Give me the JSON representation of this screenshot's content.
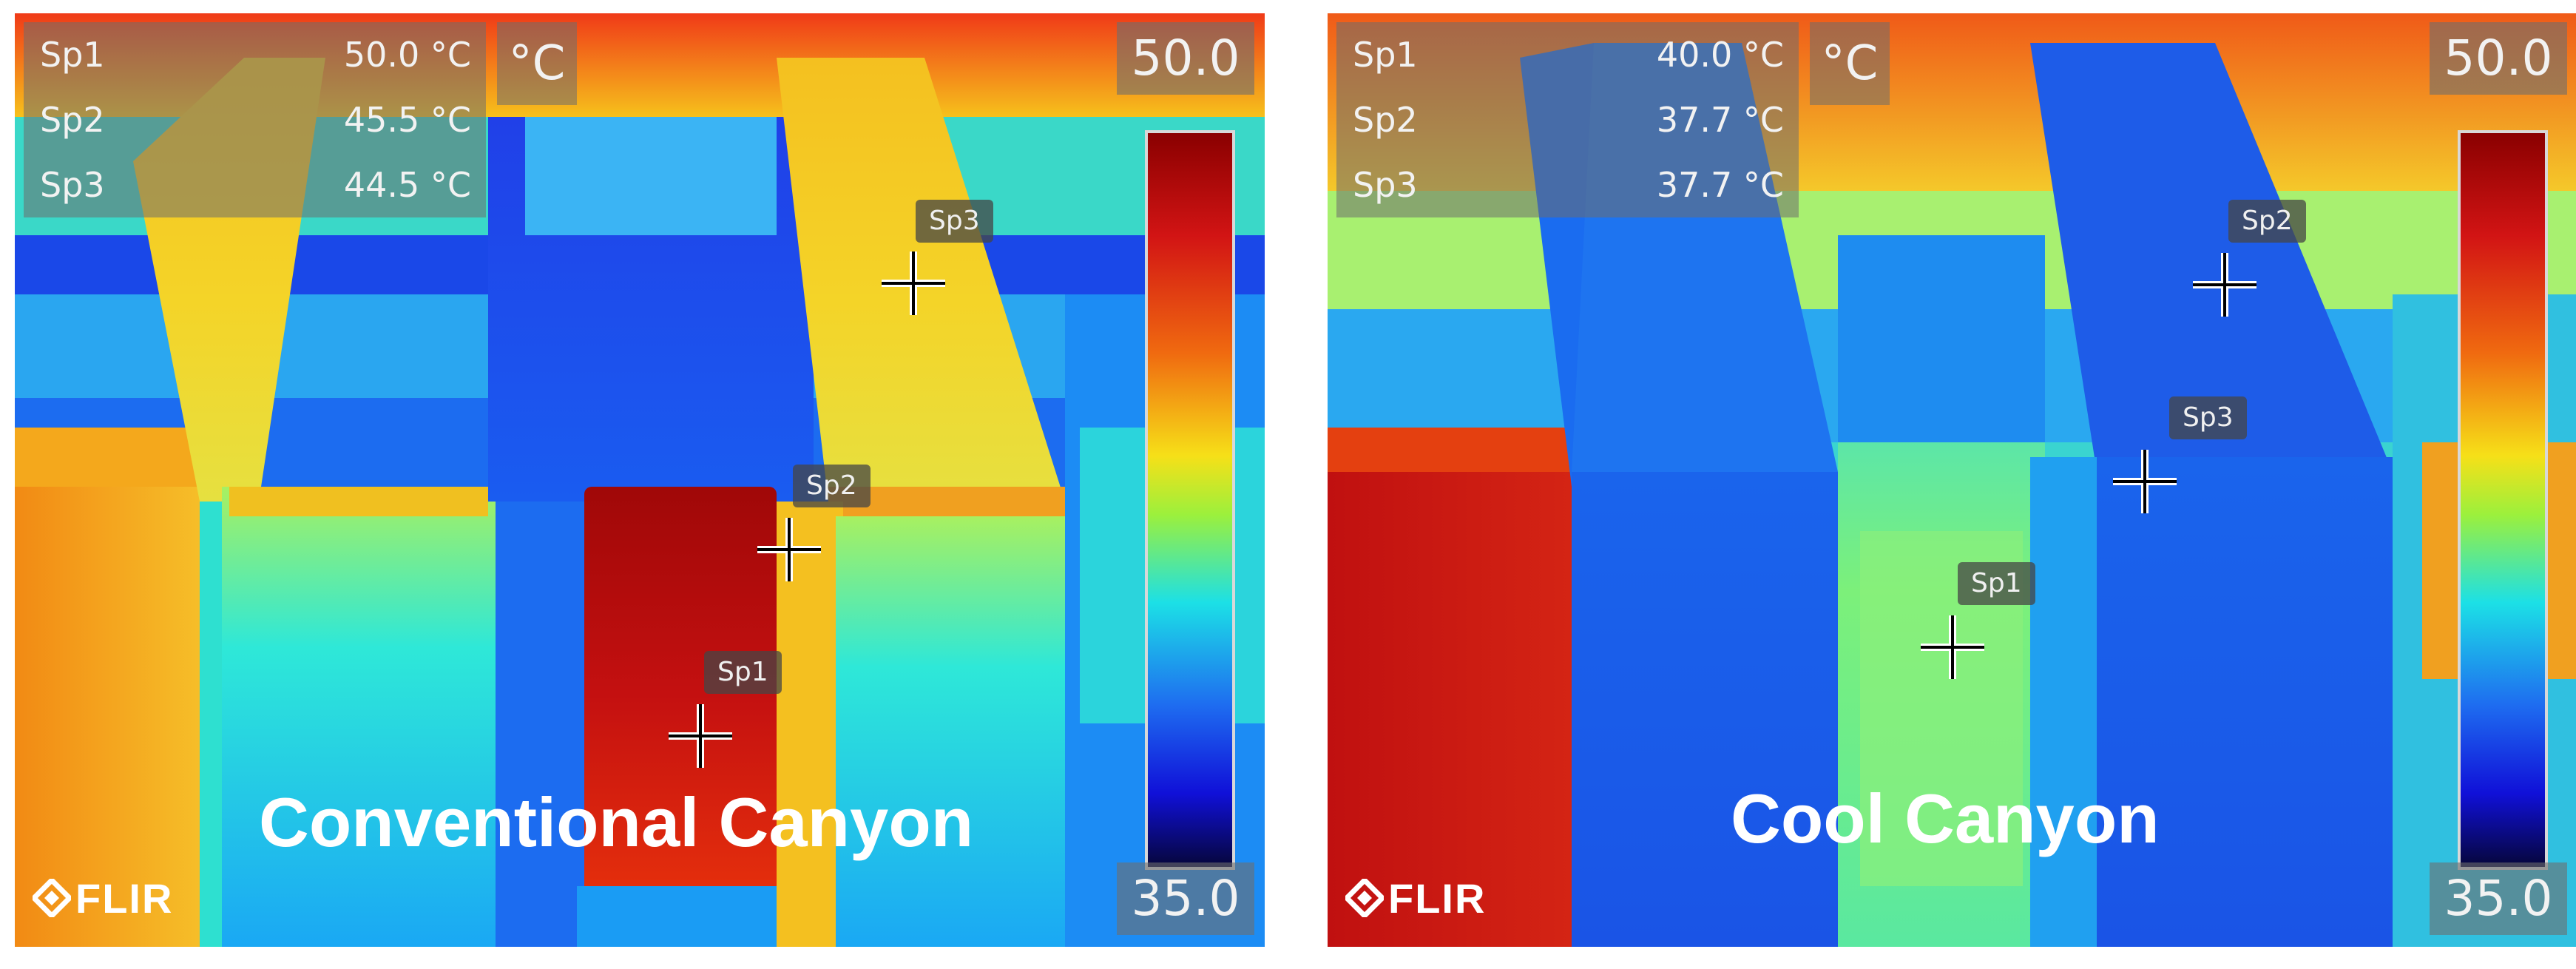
{
  "panels": [
    {
      "caption": "Conventional Canyon",
      "readouts": [
        {
          "name": "Sp1",
          "value": "50.0 °C"
        },
        {
          "name": "Sp2",
          "value": "45.5 °C"
        },
        {
          "name": "Sp3",
          "value": "44.5 °C"
        }
      ],
      "unit": "°C",
      "scale_max": "50.0",
      "scale_min": "35.0",
      "spots": [
        "Sp1",
        "Sp2",
        "Sp3"
      ],
      "brand": "FLIR"
    },
    {
      "caption": "Cool Canyon",
      "readouts": [
        {
          "name": "Sp1",
          "value": "40.0 °C"
        },
        {
          "name": "Sp2",
          "value": "37.7 °C"
        },
        {
          "name": "Sp3",
          "value": "37.7 °C"
        }
      ],
      "unit": "°C",
      "scale_max": "50.0",
      "scale_min": "35.0",
      "spots": [
        "Sp1",
        "Sp2",
        "Sp3"
      ],
      "brand": "FLIR"
    }
  ]
}
